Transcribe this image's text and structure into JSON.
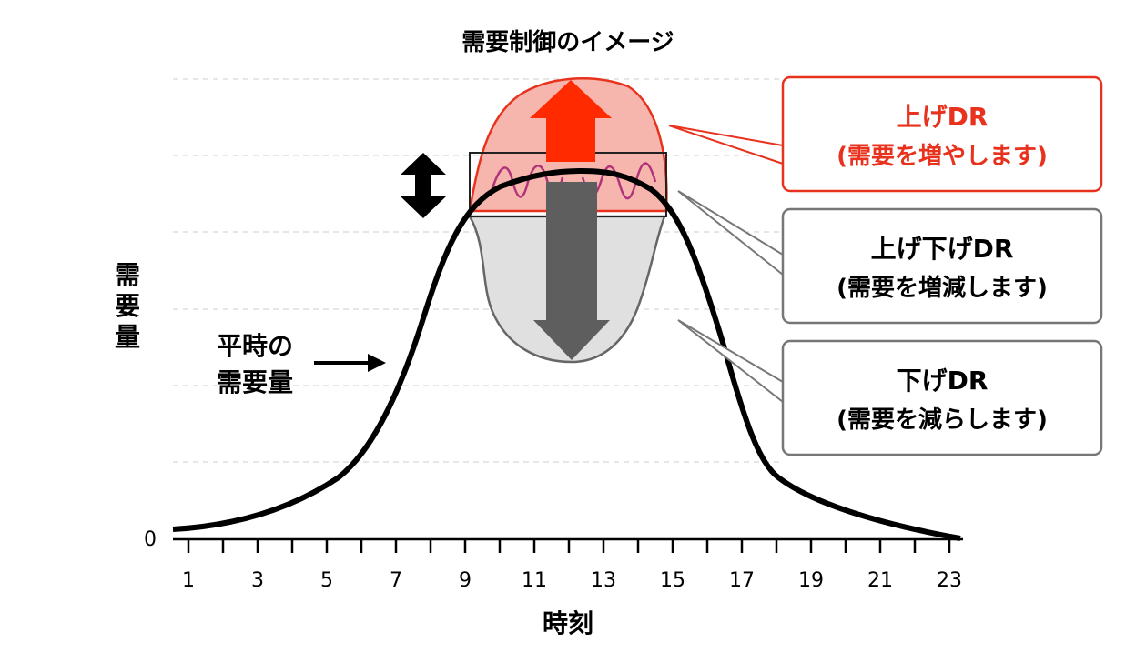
{
  "title": "需要制御のイメージ",
  "y_axis_label": "需要量",
  "x_axis_label": "時刻",
  "y_zero_label": "0",
  "baseline_label": {
    "line1": "平時の",
    "line2": "需要量"
  },
  "callouts": {
    "up_dr": {
      "line1": "上げDR",
      "line2": "(需要を増やします)",
      "color": "#e8321e"
    },
    "up_down_dr": {
      "line1": "上げ下げDR",
      "line2": "(需要を増減します)",
      "color": "#777777"
    },
    "down_dr": {
      "line1": "下げDR",
      "line2": "(需要を減らします)",
      "color": "#777777"
    }
  },
  "colors": {
    "curve": "#000000",
    "up_fill": "#f7b6ad",
    "up_stroke": "#e8321e",
    "up_arrow": "#ff2a00",
    "down_fill": "#e0e0e0",
    "down_stroke": "#666666",
    "down_arrow": "#5e5e5e",
    "fluctuation": "#b0337a"
  },
  "chart_data": {
    "type": "line",
    "x_ticks": [
      "1",
      "3",
      "5",
      "7",
      "9",
      "11",
      "13",
      "15",
      "17",
      "19",
      "21",
      "23"
    ]
  }
}
